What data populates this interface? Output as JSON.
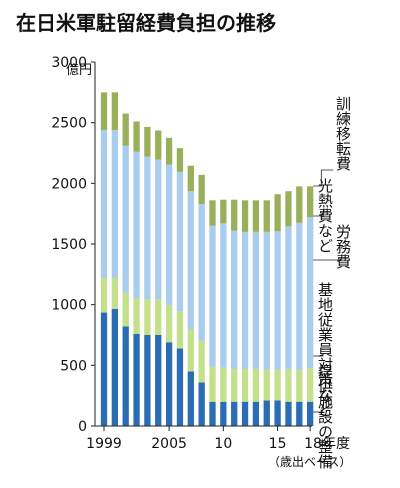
{
  "chart_data": {
    "type": "bar",
    "title": "在日米軍駐留経費負担の推移",
    "ylabel": "億円",
    "ylim": [
      0,
      3000
    ],
    "yticks": [
      0,
      500,
      1000,
      1500,
      2000,
      2500,
      3000
    ],
    "categories": [
      "1999",
      "2000",
      "2001",
      "2002",
      "2003",
      "2004",
      "2005",
      "2006",
      "2007",
      "2008",
      "2009",
      "2010",
      "2011",
      "2012",
      "2013",
      "2014",
      "2015",
      "2016",
      "2017",
      "2018"
    ],
    "x_tick_labels": [
      "1999",
      "2005",
      "10",
      "15",
      "18年度"
    ],
    "x_note": "（歳出ベース）",
    "stacked": true,
    "series": [
      {
        "name": "提供施設の整備",
        "color": "#2a6db5",
        "values": [
          935,
          965,
          820,
          760,
          750,
          750,
          690,
          640,
          450,
          360,
          200,
          200,
          200,
          200,
          200,
          210,
          210,
          200,
          200,
          200
        ]
      },
      {
        "name": "基地従業員対策など",
        "color": "#c4e08a",
        "values": [
          285,
          255,
          280,
          295,
          295,
          295,
          305,
          305,
          345,
          345,
          290,
          280,
          270,
          270,
          270,
          255,
          255,
          270,
          265,
          275
        ]
      },
      {
        "name": "労務費",
        "color": "#a8cdee",
        "values": [
          1220,
          1220,
          1210,
          1205,
          1175,
          1150,
          1160,
          1150,
          1140,
          1125,
          1160,
          1190,
          1140,
          1130,
          1130,
          1135,
          1140,
          1175,
          1210,
          1245
        ]
      },
      {
        "name": "光熱費など",
        "color": "#b6d3ed",
        "values": [
          0,
          0,
          0,
          0,
          0,
          0,
          0,
          0,
          0,
          0,
          0,
          0,
          0,
          0,
          0,
          0,
          0,
          0,
          0,
          0
        ]
      },
      {
        "name": "訓練移転費",
        "color": "#9aaf5a",
        "values": [
          310,
          310,
          265,
          250,
          245,
          240,
          220,
          195,
          210,
          240,
          210,
          195,
          255,
          260,
          260,
          260,
          305,
          290,
          300,
          255
        ]
      }
    ],
    "series_labels": [
      "訓練移転費",
      "光熱費など",
      "労務費",
      "基地従業員対策など",
      "提供施設の整備"
    ],
    "grid": false
  }
}
